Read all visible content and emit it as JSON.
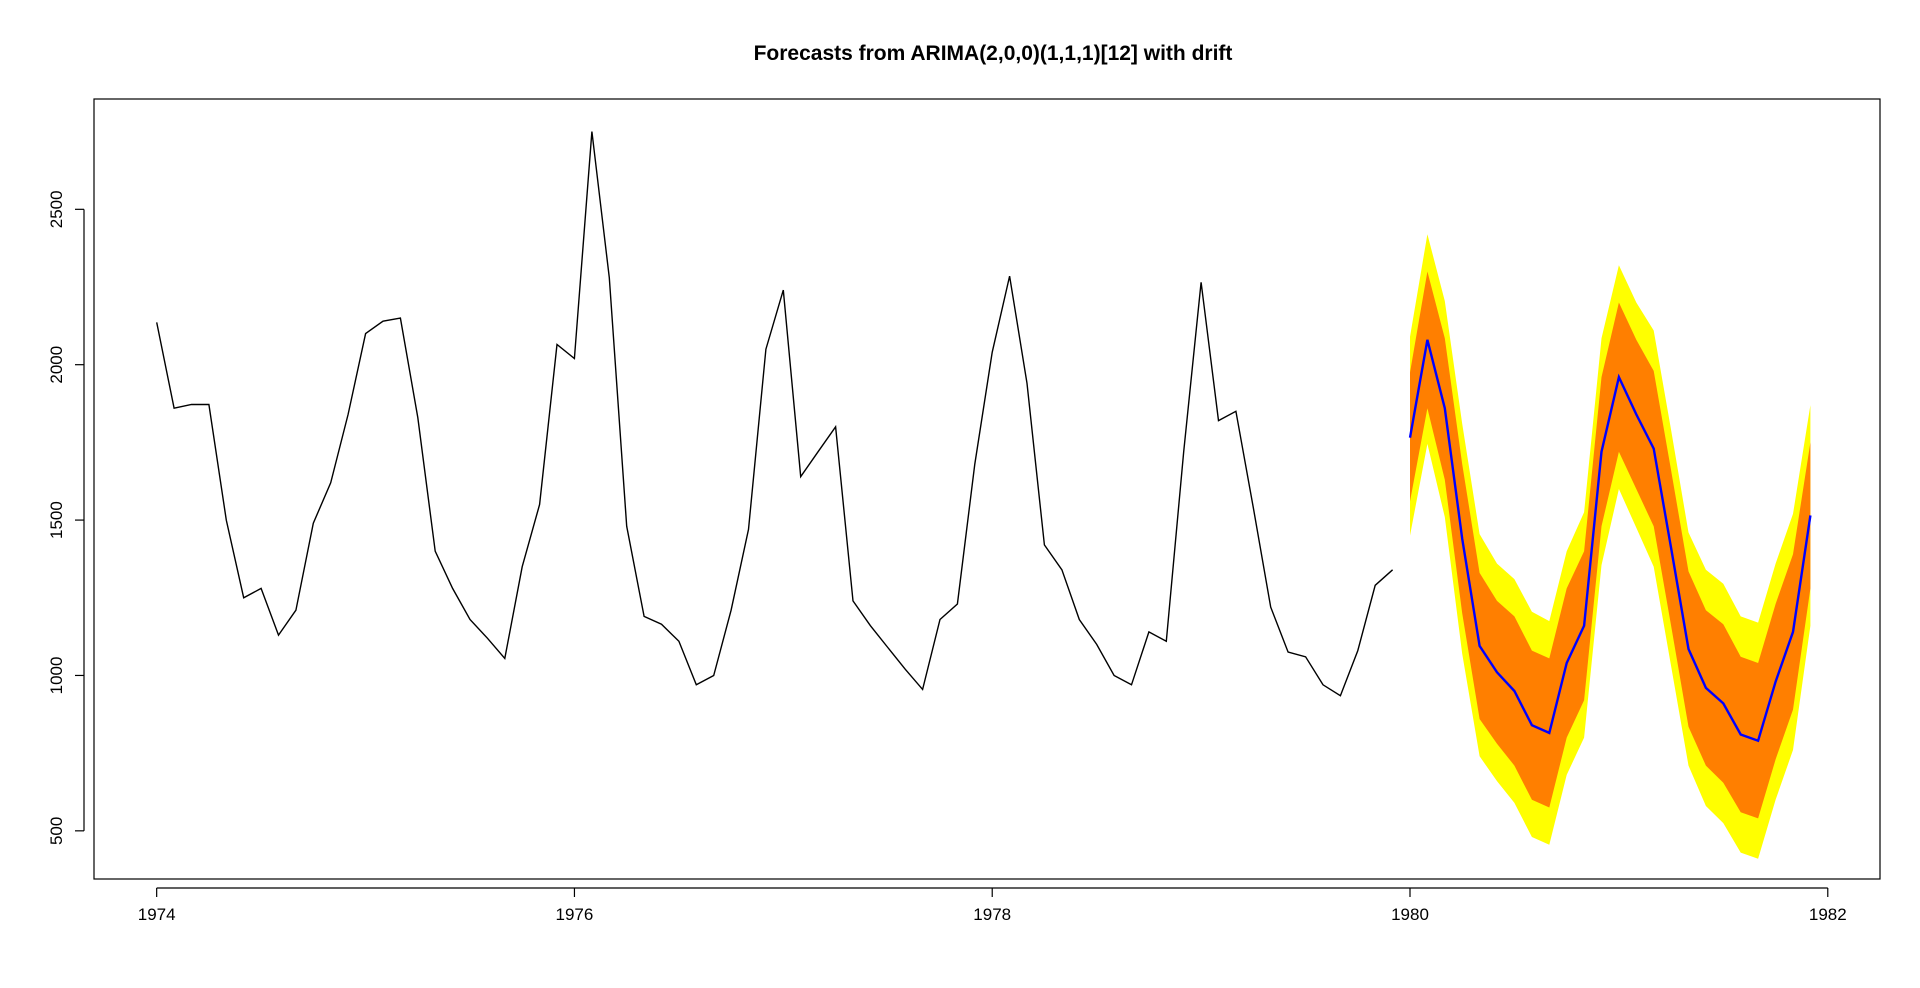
{
  "chart_data": {
    "type": "line",
    "title": "Forecasts from ARIMA(2,0,0)(1,1,1)[12] with drift",
    "xlabel": "",
    "ylabel": "",
    "xlim": [
      1973.7,
      1982.25
    ],
    "ylim": [
      345,
      2855
    ],
    "x_ticks": [
      1974,
      1976,
      1978,
      1980,
      1982
    ],
    "x_tick_labels": [
      "1974",
      "1976",
      "1978",
      "1980",
      "1982"
    ],
    "y_ticks": [
      500,
      1000,
      1500,
      2000,
      2500
    ],
    "y_tick_labels": [
      "500",
      "1000",
      "1500",
      "2000",
      "2500"
    ],
    "grid": false,
    "colors": {
      "observed": "#000000",
      "forecast": "#0000ff",
      "interval_80": "#ff7f00",
      "interval_95": "#ffff00"
    },
    "observed": {
      "start": 1974,
      "frequency": 12,
      "values": [
        2136,
        1860,
        1872,
        1872,
        1500,
        1250,
        1280,
        1130,
        1210,
        1490,
        1620,
        1840,
        2100,
        2140,
        2150,
        1830,
        1400,
        1280,
        1180,
        1120,
        1055,
        1350,
        1550,
        2065,
        2020,
        2750,
        2280,
        1480,
        1190,
        1165,
        1110,
        970,
        1000,
        1210,
        1470,
        2050,
        2240,
        1640,
        1720,
        1800,
        1240,
        1160,
        1090,
        1020,
        955,
        1180,
        1230,
        1680,
        2040,
        2285,
        1940,
        1420,
        1340,
        1180,
        1100,
        1000,
        970,
        1140,
        1110,
        1720,
        2265,
        1820,
        1850,
        1540,
        1220,
        1075,
        1060,
        970,
        935,
        1080,
        1290,
        1340
      ]
    },
    "forecast": {
      "start": 1980,
      "frequency": 12,
      "mean": [
        1765,
        2080,
        1860,
        1440,
        1095,
        1010,
        950,
        840,
        815,
        1040,
        1160,
        1720,
        1960,
        1840,
        1730,
        1410,
        1085,
        960,
        910,
        810,
        790,
        980,
        1140,
        1515
      ],
      "lo80": [
        1560,
        1860,
        1630,
        1200,
        860,
        780,
        710,
        600,
        575,
        800,
        920,
        1480,
        1720,
        1600,
        1480,
        1160,
        835,
        710,
        655,
        560,
        540,
        730,
        890,
        1280
      ],
      "hi80": [
        1975,
        2300,
        2085,
        1680,
        1330,
        1240,
        1190,
        1080,
        1055,
        1280,
        1400,
        1960,
        2200,
        2080,
        1980,
        1660,
        1335,
        1210,
        1165,
        1060,
        1040,
        1230,
        1390,
        1750
      ],
      "lo95": [
        1450,
        1745,
        1510,
        1070,
        740,
        660,
        590,
        480,
        455,
        680,
        800,
        1355,
        1600,
        1475,
        1350,
        1030,
        710,
        580,
        525,
        430,
        410,
        600,
        760,
        1160
      ],
      "hi95": [
        2090,
        2420,
        2205,
        1810,
        1455,
        1360,
        1310,
        1205,
        1175,
        1400,
        1525,
        2085,
        2320,
        2200,
        2110,
        1790,
        1460,
        1340,
        1295,
        1190,
        1170,
        1360,
        1520,
        1870
      ]
    }
  }
}
